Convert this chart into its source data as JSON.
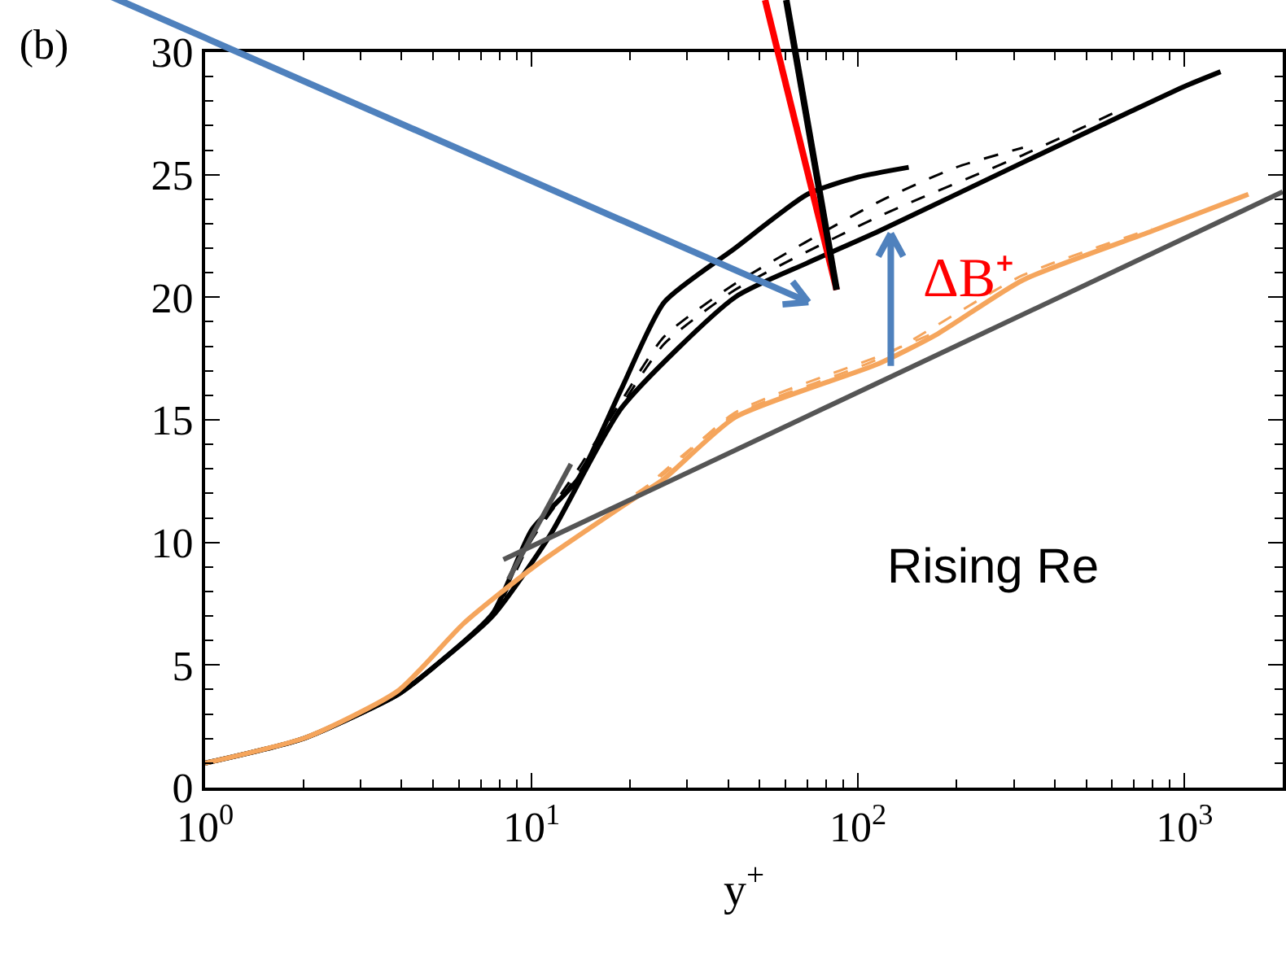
{
  "chart_data": {
    "type": "line",
    "title": "(b)",
    "xlabel": "y$^{+}$",
    "log": "x",
    "xlim": [
      1,
      2000
    ],
    "ylim": [
      0,
      30
    ],
    "xticks": [
      {
        "value": 1,
        "label": "10$^{0}$"
      },
      {
        "value": 10,
        "label": "10$^{1}$"
      },
      {
        "value": 100,
        "label": "10$^{2}$"
      },
      {
        "value": 1000,
        "label": "10$^{3}$"
      }
    ],
    "yticks": [
      0,
      5,
      10,
      15,
      20,
      25,
      30
    ],
    "marker": "none",
    "annotations": [
      {
        "text": "ΔB⁺",
        "x": 126,
        "y": 22.6
      },
      "Rising Re"
    ],
    "series": [
      {
        "color": "#000000",
        "line_style": "solid",
        "x": [
          1,
          2,
          3.9,
          5,
          7.6,
          10,
          13.9,
          18.9,
          25.5,
          42,
          70,
          100,
          143
        ],
        "values": [
          1,
          2,
          3.8,
          4.9,
          7.1,
          10.5,
          12.6,
          16.3,
          19.8,
          22,
          24.2,
          24.9,
          25.3
        ]
      },
      {
        "color": "#000000",
        "line_style": "dashed",
        "x": [
          1,
          2,
          3.9,
          5,
          7.6,
          10,
          13.9,
          18.9,
          25.5,
          42,
          116,
          200,
          320
        ],
        "values": [
          1,
          2,
          3.8,
          4.9,
          7,
          10.2,
          13,
          15.8,
          18.4,
          20.55,
          23.9,
          25.3,
          26.1
        ]
      },
      {
        "color": "#000000",
        "line_style": "dashed",
        "x": [
          1,
          2,
          3.9,
          5,
          7.6,
          10,
          13.9,
          18.9,
          25.5,
          42,
          116,
          320,
          650
        ],
        "values": [
          1,
          2,
          3.8,
          4.9,
          7,
          10.1,
          12.8,
          15.6,
          18.1,
          20.3,
          23.3,
          25.8,
          27.7
        ]
      },
      {
        "color": "#000000",
        "line_style": "solid",
        "x": [
          1,
          2,
          3.9,
          5,
          7.6,
          11.4,
          18.9,
          42,
          70,
          116,
          320,
          690,
          1000,
          1290
        ],
        "values": [
          1,
          2,
          3.8,
          4.9,
          7,
          10.3,
          15.5,
          20,
          21.4,
          22.7,
          25.5,
          27.6,
          28.6,
          29.2
        ]
      },
      {
        "color": "#f5a55c",
        "line_style": "solid",
        "x": [
          1,
          2.04,
          3.9,
          6.2,
          10.3,
          20.9,
          25.5,
          42,
          116,
          175,
          320,
          795,
          1570
        ],
        "values": [
          1,
          2.05,
          3.95,
          6.7,
          9.06,
          11.85,
          12.6,
          15.1,
          17.3,
          18.5,
          20.7,
          22.7,
          24.2
        ]
      },
      {
        "color": "#f5a55c",
        "line_style": "dashed",
        "x": [
          20.9,
          25.5,
          42,
          116,
          175
        ],
        "values": [
          12,
          12.8,
          15.3,
          17.6,
          18.6
        ]
      },
      {
        "color": "#f5a55c",
        "line_style": "dashed",
        "x": [
          20.9,
          42,
          116,
          320,
          795
        ],
        "values": [
          11.9,
          15.2,
          17.5,
          20.9,
          22.8
        ]
      },
      {
        "color": "#555555",
        "line_style": "solid",
        "x": [
          8.5,
          13.2
        ],
        "values": [
          8.5,
          13.2
        ]
      },
      {
        "color": "#555555",
        "line_style": "solid",
        "x": [
          8.2,
          2000
        ],
        "values": [
          9.3,
          24.3
        ]
      }
    ]
  }
}
